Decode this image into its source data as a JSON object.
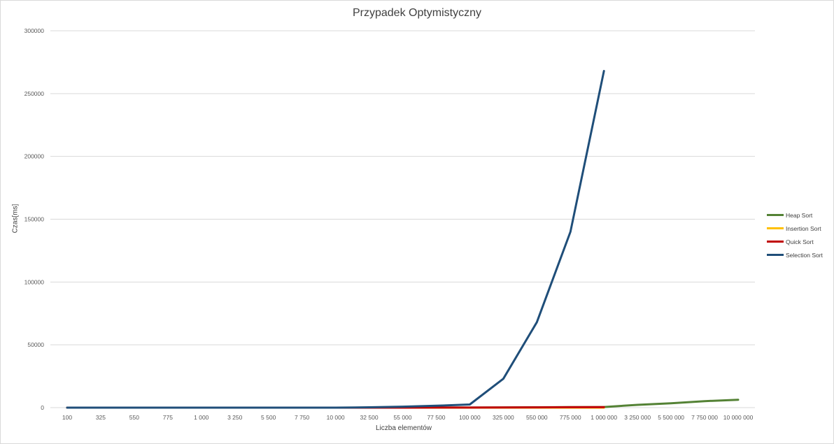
{
  "chart_data": {
    "type": "line",
    "title": "Przypadek Optymistyczny",
    "xlabel": "Liczba elementów",
    "ylabel": "Czas[ms]",
    "ylim": [
      0,
      300000
    ],
    "yticks": [
      "0",
      "50000",
      "100000",
      "150000",
      "200000",
      "250000",
      "300000"
    ],
    "grid": "horizontal",
    "legend_position": "right",
    "categories": [
      "100",
      "325",
      "550",
      "775",
      "1 000",
      "3 250",
      "5 500",
      "7 750",
      "10 000",
      "32 500",
      "55 000",
      "77 500",
      "100 000",
      "325 000",
      "550 000",
      "775 000",
      "1 000 000",
      "3 250 000",
      "5 500 000",
      "7 750 000",
      "10 000 000"
    ],
    "series": [
      {
        "name": "Heap Sort",
        "color": "#548235",
        "values": [
          0,
          0,
          0,
          0,
          0,
          0,
          0,
          0,
          0,
          10,
          20,
          30,
          40,
          150,
          260,
          370,
          480,
          2200,
          3500,
          5200,
          6300
        ]
      },
      {
        "name": "Insertion Sort",
        "color": "#ffc000",
        "values": [
          0,
          0,
          0,
          0,
          0,
          0,
          0,
          0,
          0,
          0,
          0,
          0,
          0,
          0,
          0,
          0,
          0,
          null,
          null,
          null,
          null
        ]
      },
      {
        "name": "Quick Sort",
        "color": "#c00000",
        "values": [
          0,
          0,
          0,
          0,
          0,
          0,
          0,
          0,
          0,
          10,
          20,
          30,
          40,
          130,
          220,
          310,
          400,
          null,
          null,
          null,
          null
        ]
      },
      {
        "name": "Selection Sort",
        "color": "#1f4e79",
        "values": [
          0,
          0,
          0,
          0,
          0,
          0,
          0,
          0,
          0,
          300,
          800,
          1500,
          2500,
          23000,
          68000,
          140000,
          268000,
          null,
          null,
          null,
          null
        ]
      }
    ]
  }
}
